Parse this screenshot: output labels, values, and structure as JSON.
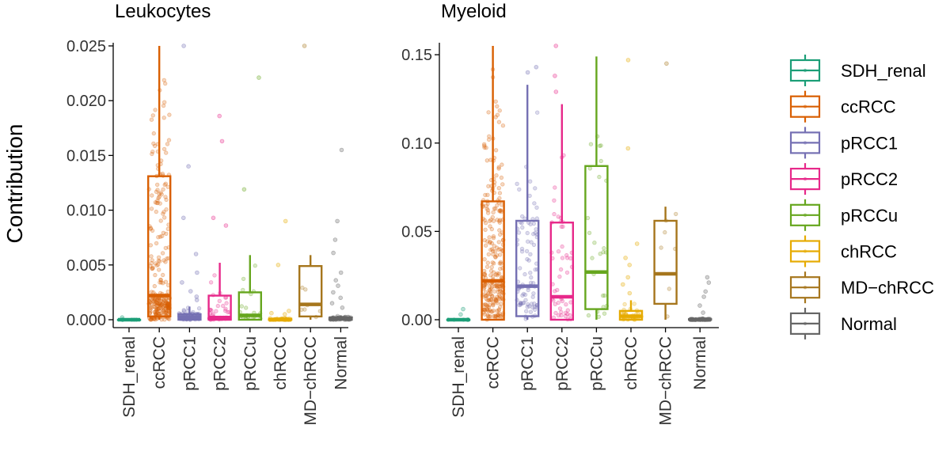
{
  "ylabel": "Contribution",
  "groups": [
    "SDH_renal",
    "ccRCC",
    "pRCC1",
    "pRCC2",
    "pRCCu",
    "chRCC",
    "MD−chRCC",
    "Normal"
  ],
  "colors": [
    "#1b9e77",
    "#d95f02",
    "#7570b3",
    "#e7298a",
    "#66a61e",
    "#e6ab02",
    "#a6761d",
    "#666666"
  ],
  "chart_data": [
    {
      "type": "boxplot",
      "title": "Leukocytes",
      "xlabel": "",
      "ylabel": "Contribution",
      "ylim": [
        0,
        0.025
      ],
      "yticks": [
        "0.000",
        "0.005",
        "0.010",
        "0.015",
        "0.020",
        "0.025"
      ],
      "categories": [
        "SDH_renal",
        "ccRCC",
        "pRCC1",
        "pRCC2",
        "pRCCu",
        "chRCC",
        "MD−chRCC",
        "Normal"
      ],
      "boxes": [
        {
          "name": "SDH_renal",
          "min": 0,
          "q1": 0,
          "median": 0,
          "q3": 0,
          "max": 0,
          "outliers": [
            0.0002
          ],
          "n_points": 6
        },
        {
          "name": "ccRCC",
          "min": 0,
          "q1": 0.0003,
          "median": 0.0022,
          "q3": 0.0131,
          "max": 0.025,
          "outliers": [],
          "n_points": 260
        },
        {
          "name": "pRCC1",
          "min": 0,
          "q1": 0,
          "median": 0.0002,
          "q3": 0.0005,
          "max": 0.0012,
          "outliers": [
            0.025,
            0.014,
            0.0093,
            0.006,
            0.0043,
            0.0034,
            0.0026,
            0.0021,
            0.0018
          ],
          "n_points": 90
        },
        {
          "name": "pRCC2",
          "min": 0,
          "q1": 0,
          "median": 0.0002,
          "q3": 0.0022,
          "max": 0.0052,
          "outliers": [
            0.0186,
            0.0163,
            0.0093,
            0.0086
          ],
          "n_points": 50
        },
        {
          "name": "pRCCu",
          "min": 0,
          "q1": 0,
          "median": 0.0004,
          "q3": 0.0025,
          "max": 0.0059,
          "outliers": [
            0.0221,
            0.0119
          ],
          "n_points": 25
        },
        {
          "name": "chRCC",
          "min": 0,
          "q1": 0,
          "median": 0,
          "q3": 0.0001,
          "max": 0.0002,
          "outliers": [
            0.009,
            0.005,
            0.0008,
            0.0006,
            0.0005
          ],
          "n_points": 40
        },
        {
          "name": "MD−chRCC",
          "min": 0,
          "q1": 0.0003,
          "median": 0.0014,
          "q3": 0.0049,
          "max": 0.0059,
          "outliers": [
            0.025
          ],
          "n_points": 7
        },
        {
          "name": "Normal",
          "min": 0,
          "q1": 0,
          "median": 0.0001,
          "q3": 0.0002,
          "max": 0.0004,
          "outliers": [
            0.0155,
            0.009,
            0.0073,
            0.0061,
            0.0043,
            0.0036,
            0.0031,
            0.0025,
            0.002,
            0.0015,
            0.0011
          ],
          "n_points": 80
        }
      ]
    },
    {
      "type": "boxplot",
      "title": "Myeloid",
      "xlabel": "",
      "ylabel": "",
      "ylim": [
        0,
        0.155
      ],
      "yticks": [
        "0.00",
        "0.05",
        "0.10",
        "0.15"
      ],
      "categories": [
        "SDH_renal",
        "ccRCC",
        "pRCC1",
        "pRCC2",
        "pRCCu",
        "chRCC",
        "MD−chRCC",
        "Normal"
      ],
      "boxes": [
        {
          "name": "SDH_renal",
          "min": 0,
          "q1": 0,
          "median": 0,
          "q3": 0,
          "max": 0,
          "outliers": [
            0.006,
            0.003
          ],
          "n_points": 6
        },
        {
          "name": "ccRCC",
          "min": 0,
          "q1": 0,
          "median": 0.022,
          "q3": 0.067,
          "max": 0.155,
          "outliers": [],
          "n_points": 260
        },
        {
          "name": "pRCC1",
          "min": 0,
          "q1": 0.002,
          "median": 0.019,
          "q3": 0.056,
          "max": 0.133,
          "outliers": [
            0.143,
            0.14
          ],
          "n_points": 90
        },
        {
          "name": "pRCC2",
          "min": 0,
          "q1": 0,
          "median": 0.013,
          "q3": 0.055,
          "max": 0.122,
          "outliers": [
            0.155,
            0.138,
            0.129
          ],
          "n_points": 50
        },
        {
          "name": "pRCCu",
          "min": 0,
          "q1": 0.006,
          "median": 0.027,
          "q3": 0.087,
          "max": 0.149,
          "outliers": [],
          "n_points": 25
        },
        {
          "name": "chRCC",
          "min": 0,
          "q1": 0,
          "median": 0.002,
          "q3": 0.005,
          "max": 0.011,
          "outliers": [
            0.147,
            0.097,
            0.043,
            0.035,
            0.031,
            0.024,
            0.02,
            0.015
          ],
          "n_points": 40
        },
        {
          "name": "MD−chRCC",
          "min": 0,
          "q1": 0.009,
          "median": 0.026,
          "q3": 0.056,
          "max": 0.064,
          "outliers": [
            0.145
          ],
          "n_points": 7
        },
        {
          "name": "Normal",
          "min": 0,
          "q1": 0,
          "median": 0,
          "q3": 0.0003,
          "max": 0.0008,
          "outliers": [
            0.024,
            0.021,
            0.016,
            0.013,
            0.008,
            0.004
          ],
          "n_points": 80
        }
      ]
    }
  ],
  "legend": {
    "position": "right",
    "items": [
      {
        "label": "SDH_renal",
        "color": "#1b9e77"
      },
      {
        "label": "ccRCC",
        "color": "#d95f02"
      },
      {
        "label": "pRCC1",
        "color": "#7570b3"
      },
      {
        "label": "pRCC2",
        "color": "#e7298a"
      },
      {
        "label": "pRCCu",
        "color": "#66a61e"
      },
      {
        "label": "chRCC",
        "color": "#e6ab02"
      },
      {
        "label": "MD−chRCC",
        "color": "#a6761d"
      },
      {
        "label": "Normal",
        "color": "#666666"
      }
    ]
  }
}
